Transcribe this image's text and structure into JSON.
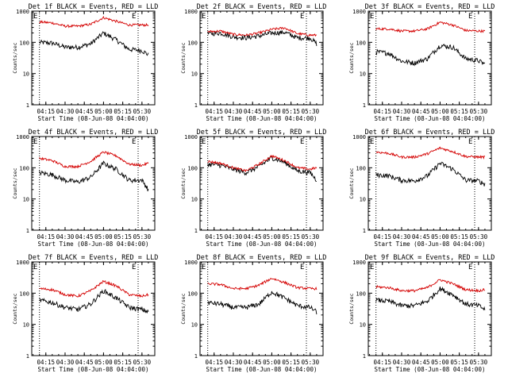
{
  "colors": {
    "events": "#000000",
    "lld": "#d40000",
    "axis": "#000000"
  },
  "common": {
    "xlabel": "Start Time (08-Jun-08 04:04:00)",
    "ylabel": "Counts/sec",
    "xtick_labels": [
      "04:15",
      "04:30",
      "04:45",
      "05:00",
      "05:15",
      "05:30"
    ],
    "ytick_labels": [
      "1",
      "10",
      "100",
      "1000"
    ],
    "marker_left": "E",
    "marker_right": "E"
  },
  "chart_data": [
    {
      "type": "line",
      "title": "Det 1f BLACK = Events, RED = LLD",
      "x": [
        "04:10",
        "04:20",
        "04:30",
        "04:40",
        "04:50",
        "05:00",
        "05:10",
        "05:20",
        "05:30",
        "05:35"
      ],
      "ylim": [
        1,
        1000
      ],
      "yscale": "log",
      "series": [
        {
          "name": "BLACK = Events",
          "values": [
            100,
            95,
            70,
            70,
            90,
            200,
            120,
            60,
            55,
            40
          ]
        },
        {
          "name": "RED = LLD",
          "values": [
            450,
            420,
            330,
            330,
            380,
            620,
            470,
            360,
            360,
            360
          ]
        }
      ]
    },
    {
      "type": "line",
      "title": "Det 2f BLACK = Events, RED = LLD",
      "x": [
        "04:10",
        "04:20",
        "04:30",
        "04:40",
        "04:50",
        "05:00",
        "05:10",
        "05:20",
        "05:30",
        "05:35"
      ],
      "ylim": [
        1,
        1000
      ],
      "yscale": "log",
      "series": [
        {
          "name": "BLACK = Events",
          "values": [
            190,
            200,
            150,
            140,
            160,
            200,
            210,
            140,
            140,
            90
          ]
        },
        {
          "name": "RED = LLD",
          "values": [
            220,
            230,
            180,
            170,
            200,
            260,
            290,
            190,
            170,
            170
          ]
        }
      ]
    },
    {
      "type": "line",
      "title": "Det 3f BLACK = Events, RED = LLD",
      "x": [
        "04:10",
        "04:20",
        "04:30",
        "04:40",
        "04:50",
        "05:00",
        "05:10",
        "05:20",
        "05:30",
        "05:35"
      ],
      "ylim": [
        1,
        1000
      ],
      "yscale": "log",
      "series": [
        {
          "name": "BLACK = Events",
          "values": [
            50,
            45,
            25,
            22,
            30,
            80,
            70,
            30,
            26,
            20
          ]
        },
        {
          "name": "RED = LLD",
          "values": [
            270,
            270,
            230,
            230,
            270,
            440,
            360,
            240,
            230,
            230
          ]
        }
      ]
    },
    {
      "type": "line",
      "title": "Det 4f BLACK = Events, RED = LLD",
      "x": [
        "04:10",
        "04:20",
        "04:30",
        "04:40",
        "04:50",
        "05:00",
        "05:10",
        "05:20",
        "05:30",
        "05:35"
      ],
      "ylim": [
        1,
        1000
      ],
      "yscale": "log",
      "series": [
        {
          "name": "BLACK = Events",
          "values": [
            70,
            60,
            40,
            35,
            50,
            140,
            90,
            40,
            40,
            20
          ]
        },
        {
          "name": "RED = LLD",
          "values": [
            200,
            170,
            110,
            110,
            160,
            320,
            240,
            130,
            120,
            140
          ]
        }
      ]
    },
    {
      "type": "line",
      "title": "Det 5f BLACK = Events, RED = LLD",
      "x": [
        "04:10",
        "04:20",
        "04:30",
        "04:40",
        "04:50",
        "05:00",
        "05:10",
        "05:20",
        "05:30",
        "05:35"
      ],
      "ylim": [
        1,
        1000
      ],
      "yscale": "log",
      "series": [
        {
          "name": "BLACK = Events",
          "values": [
            130,
            120,
            90,
            70,
            110,
            210,
            150,
            80,
            70,
            40
          ]
        },
        {
          "name": "RED = LLD",
          "values": [
            160,
            140,
            100,
            80,
            130,
            240,
            170,
            100,
            90,
            100
          ]
        }
      ]
    },
    {
      "type": "line",
      "title": "Det 6f BLACK = Events, RED = LLD",
      "x": [
        "04:10",
        "04:20",
        "04:30",
        "04:40",
        "04:50",
        "05:00",
        "05:10",
        "05:20",
        "05:30",
        "05:35"
      ],
      "ylim": [
        1,
        1000
      ],
      "yscale": "log",
      "series": [
        {
          "name": "BLACK = Events",
          "values": [
            60,
            55,
            40,
            38,
            55,
            140,
            90,
            40,
            38,
            30
          ]
        },
        {
          "name": "RED = LLD",
          "values": [
            320,
            290,
            220,
            220,
            280,
            430,
            330,
            230,
            220,
            220
          ]
        }
      ]
    },
    {
      "type": "line",
      "title": "Det 7f BLACK = Events, RED = LLD",
      "x": [
        "04:10",
        "04:20",
        "04:30",
        "04:40",
        "04:50",
        "05:00",
        "05:10",
        "05:20",
        "05:30",
        "05:35"
      ],
      "ylim": [
        1,
        1000
      ],
      "yscale": "log",
      "series": [
        {
          "name": "BLACK = Events",
          "values": [
            60,
            50,
            35,
            30,
            45,
            120,
            70,
            35,
            30,
            25
          ]
        },
        {
          "name": "RED = LLD",
          "values": [
            140,
            130,
            90,
            80,
            120,
            240,
            170,
            90,
            80,
            90
          ]
        }
      ]
    },
    {
      "type": "line",
      "title": "Det 8f BLACK = Events, RED = LLD",
      "x": [
        "04:10",
        "04:20",
        "04:30",
        "04:40",
        "04:50",
        "05:00",
        "05:10",
        "05:20",
        "05:30",
        "05:35"
      ],
      "ylim": [
        1,
        1000
      ],
      "yscale": "log",
      "series": [
        {
          "name": "BLACK = Events",
          "values": [
            50,
            45,
            35,
            35,
            45,
            110,
            70,
            40,
            35,
            25
          ]
        },
        {
          "name": "RED = LLD",
          "values": [
            200,
            190,
            140,
            140,
            180,
            300,
            220,
            150,
            140,
            140
          ]
        }
      ]
    },
    {
      "type": "line",
      "title": "Det 9f BLACK = Events, RED = LLD",
      "x": [
        "04:10",
        "04:20",
        "04:30",
        "04:40",
        "04:50",
        "05:00",
        "05:10",
        "05:20",
        "05:30",
        "05:35"
      ],
      "ylim": [
        1,
        1000
      ],
      "yscale": "log",
      "series": [
        {
          "name": "BLACK = Events",
          "values": [
            60,
            55,
            40,
            40,
            55,
            140,
            90,
            45,
            40,
            30
          ]
        },
        {
          "name": "RED = LLD",
          "values": [
            160,
            150,
            120,
            120,
            150,
            270,
            200,
            130,
            120,
            130
          ]
        }
      ]
    }
  ]
}
